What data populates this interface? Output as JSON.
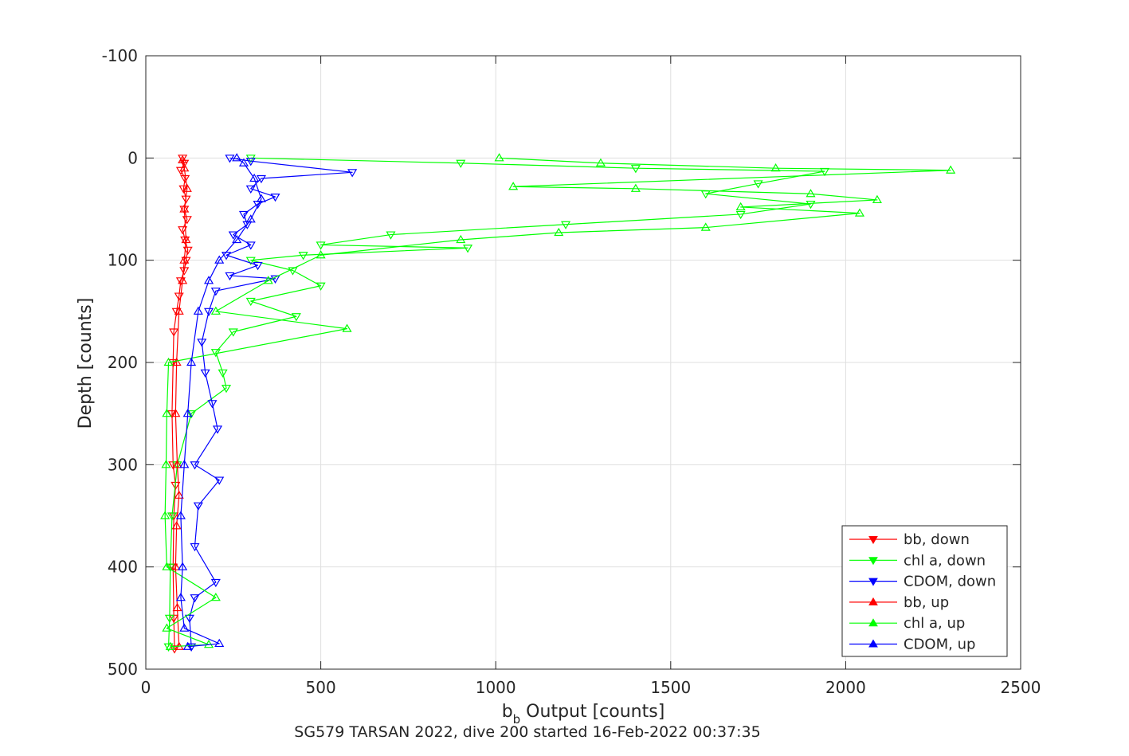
{
  "chart_data": {
    "type": "line",
    "xlabel_main": "b",
    "xlabel_sub": "b",
    "xlabel_rest": " Output [counts]",
    "ylabel": "Depth [counts]",
    "caption": "SG579 TARSAN 2022, dive 200 started 16-Feb-2022 00:37:35",
    "xlim": [
      0,
      2500
    ],
    "ylim": [
      -100,
      500
    ],
    "y_reversed": true,
    "grid": true,
    "legend_position": "bottom-right",
    "x_ticks": [
      "0",
      "500",
      "1000",
      "1500",
      "2000",
      "2500"
    ],
    "y_ticks": [
      "-100",
      "0",
      "100",
      "200",
      "300",
      "400",
      "500"
    ],
    "x_tick_values": [
      0,
      500,
      1000,
      1500,
      2000,
      2500
    ],
    "y_tick_values": [
      -100,
      0,
      100,
      200,
      300,
      400,
      500
    ],
    "series": [
      {
        "name": "bb, down",
        "color": "#ff0000",
        "marker": "triangle-down",
        "points": [
          [
            105,
            0
          ],
          [
            110,
            5
          ],
          [
            100,
            12
          ],
          [
            112,
            20
          ],
          [
            108,
            30
          ],
          [
            115,
            40
          ],
          [
            110,
            50
          ],
          [
            118,
            60
          ],
          [
            105,
            70
          ],
          [
            112,
            80
          ],
          [
            120,
            90
          ],
          [
            115,
            100
          ],
          [
            110,
            110
          ],
          [
            100,
            120
          ],
          [
            95,
            135
          ],
          [
            88,
            150
          ],
          [
            80,
            170
          ],
          [
            78,
            200
          ],
          [
            75,
            250
          ],
          [
            78,
            300
          ],
          [
            85,
            320
          ],
          [
            80,
            350
          ],
          [
            78,
            400
          ],
          [
            80,
            450
          ],
          [
            82,
            480
          ]
        ]
      },
      {
        "name": "chl a, down",
        "color": "#00ff00",
        "marker": "triangle-down",
        "points": [
          [
            300,
            0
          ],
          [
            900,
            5
          ],
          [
            1400,
            10
          ],
          [
            1940,
            13
          ],
          [
            1750,
            25
          ],
          [
            1600,
            35
          ],
          [
            1900,
            45
          ],
          [
            1700,
            55
          ],
          [
            1200,
            65
          ],
          [
            700,
            75
          ],
          [
            500,
            85
          ],
          [
            920,
            88
          ],
          [
            450,
            95
          ],
          [
            300,
            100
          ],
          [
            420,
            110
          ],
          [
            500,
            125
          ],
          [
            300,
            140
          ],
          [
            430,
            155
          ],
          [
            250,
            170
          ],
          [
            200,
            190
          ],
          [
            220,
            210
          ],
          [
            230,
            225
          ],
          [
            130,
            250
          ],
          [
            90,
            300
          ],
          [
            75,
            350
          ],
          [
            70,
            400
          ],
          [
            68,
            450
          ],
          [
            65,
            478
          ]
        ]
      },
      {
        "name": "CDOM, down",
        "color": "#0000ff",
        "marker": "triangle-down",
        "points": [
          [
            240,
            0
          ],
          [
            300,
            3
          ],
          [
            590,
            14
          ],
          [
            330,
            20
          ],
          [
            300,
            30
          ],
          [
            370,
            38
          ],
          [
            320,
            45
          ],
          [
            280,
            55
          ],
          [
            290,
            65
          ],
          [
            250,
            75
          ],
          [
            300,
            85
          ],
          [
            230,
            95
          ],
          [
            320,
            105
          ],
          [
            240,
            115
          ],
          [
            370,
            118
          ],
          [
            200,
            130
          ],
          [
            180,
            150
          ],
          [
            160,
            180
          ],
          [
            170,
            210
          ],
          [
            190,
            240
          ],
          [
            205,
            265
          ],
          [
            140,
            300
          ],
          [
            210,
            315
          ],
          [
            150,
            340
          ],
          [
            140,
            380
          ],
          [
            200,
            415
          ],
          [
            140,
            430
          ],
          [
            125,
            450
          ],
          [
            130,
            478
          ]
        ]
      },
      {
        "name": "bb, up",
        "color": "#ff0000",
        "marker": "triangle-up",
        "points": [
          [
            95,
            478
          ],
          [
            90,
            440
          ],
          [
            85,
            400
          ],
          [
            88,
            360
          ],
          [
            95,
            330
          ],
          [
            90,
            300
          ],
          [
            85,
            250
          ],
          [
            88,
            200
          ],
          [
            95,
            150
          ],
          [
            105,
            120
          ],
          [
            110,
            100
          ],
          [
            115,
            80
          ],
          [
            110,
            50
          ],
          [
            118,
            30
          ],
          [
            110,
            10
          ],
          [
            105,
            2
          ]
        ]
      },
      {
        "name": "chl a, up",
        "color": "#00ff00",
        "marker": "triangle-up",
        "points": [
          [
            70,
            478
          ],
          [
            180,
            476
          ],
          [
            60,
            460
          ],
          [
            200,
            430
          ],
          [
            60,
            400
          ],
          [
            55,
            350
          ],
          [
            58,
            300
          ],
          [
            60,
            250
          ],
          [
            65,
            200
          ],
          [
            575,
            167
          ],
          [
            200,
            150
          ],
          [
            350,
            120
          ],
          [
            500,
            95
          ],
          [
            900,
            80
          ],
          [
            1180,
            73
          ],
          [
            1600,
            68
          ],
          [
            2040,
            54
          ],
          [
            1700,
            48
          ],
          [
            2090,
            41
          ],
          [
            1900,
            35
          ],
          [
            1400,
            30
          ],
          [
            1050,
            28
          ],
          [
            2300,
            12
          ],
          [
            1800,
            10
          ],
          [
            1300,
            5
          ],
          [
            1010,
            0
          ]
        ]
      },
      {
        "name": "CDOM, up",
        "color": "#0000ff",
        "marker": "triangle-up",
        "points": [
          [
            120,
            478
          ],
          [
            210,
            475
          ],
          [
            110,
            460
          ],
          [
            100,
            430
          ],
          [
            105,
            400
          ],
          [
            100,
            350
          ],
          [
            110,
            300
          ],
          [
            120,
            250
          ],
          [
            130,
            200
          ],
          [
            150,
            150
          ],
          [
            180,
            120
          ],
          [
            210,
            100
          ],
          [
            260,
            80
          ],
          [
            300,
            60
          ],
          [
            330,
            40
          ],
          [
            310,
            20
          ],
          [
            280,
            5
          ],
          [
            260,
            0
          ]
        ]
      }
    ]
  }
}
